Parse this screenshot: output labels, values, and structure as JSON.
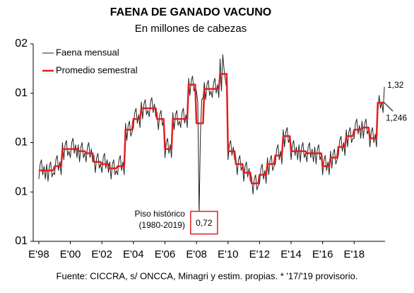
{
  "chart_data": {
    "type": "line",
    "title": "FAENA DE GANADO VACUNO",
    "subtitle": "En millones de cabezas",
    "source": "Fuente: CICCRA, s/ ONCCA, Minagri y estim. propias. * '17/'19 provisorio.",
    "annotations": [
      "Piso histórico",
      "(1980-2019)"
    ],
    "categories": [
      "E'98",
      null,
      null,
      null,
      null,
      null,
      null,
      null,
      null,
      null,
      null,
      null,
      null,
      null,
      null,
      null,
      null,
      null,
      null,
      null,
      null,
      null,
      null,
      null,
      "E'00",
      null,
      null,
      null,
      null,
      null,
      null,
      null,
      null,
      null,
      null,
      null,
      null,
      null,
      null,
      null,
      null,
      null,
      null,
      null,
      null,
      null,
      null,
      null,
      "E'02",
      null,
      null,
      null,
      null,
      null,
      null,
      null,
      null,
      null,
      null,
      null,
      null,
      null,
      null,
      null,
      null,
      null,
      null,
      null,
      null,
      null,
      null,
      null,
      "E'04",
      null,
      null,
      null,
      null,
      null,
      null,
      null,
      null,
      null,
      null,
      null,
      null,
      null,
      null,
      null,
      null,
      null,
      null,
      null,
      null,
      null,
      null,
      null,
      "E'06",
      null,
      null,
      null,
      null,
      null,
      null,
      null,
      null,
      null,
      null,
      null,
      null,
      null,
      null,
      null,
      null,
      null,
      null,
      null,
      null,
      null,
      null,
      null,
      "E'08",
      null,
      null,
      null,
      null,
      null,
      null,
      null,
      null,
      null,
      null,
      null,
      null,
      null,
      null,
      null,
      null,
      null,
      null,
      null,
      null,
      null,
      null,
      null,
      "E'10",
      null,
      null,
      null,
      null,
      null,
      null,
      null,
      null,
      null,
      null,
      null,
      null,
      null,
      null,
      null,
      null,
      null,
      null,
      null,
      null,
      null,
      null,
      null,
      "E'12",
      null,
      null,
      null,
      null,
      null,
      null,
      null,
      null,
      null,
      null,
      null,
      null,
      null,
      null,
      null,
      null,
      null,
      null,
      null,
      null,
      null,
      null,
      null,
      "E'14",
      null,
      null,
      null,
      null,
      null,
      null,
      null,
      null,
      null,
      null,
      null,
      null,
      null,
      null,
      null,
      null,
      null,
      null,
      null,
      null,
      null,
      null,
      null,
      "E'16",
      null,
      null,
      null,
      null,
      null,
      null,
      null,
      null,
      null,
      null,
      null,
      null,
      null,
      null,
      null,
      null,
      null,
      null,
      null,
      null,
      null,
      null,
      null,
      "E'18",
      null,
      null,
      null,
      null,
      null,
      null,
      null,
      null,
      null,
      null,
      null,
      null,
      null,
      null,
      null,
      null,
      null,
      null,
      null,
      null,
      null,
      null,
      null
    ],
    "series": [
      {
        "name": "Faena mensual",
        "color": "#222222",
        "width": 1,
        "point_labels": [
          {
            "index": 122,
            "label": "0,72",
            "boxed": true
          },
          {
            "index": 263,
            "label": "1,32"
          }
        ],
        "values": [
          0.89,
          0.96,
          0.98,
          0.91,
          0.95,
          0.89,
          0.96,
          0.88,
          0.95,
          0.97,
          0.9,
          0.92,
          0.91,
          0.98,
          1.0,
          0.93,
          0.97,
          0.91,
          1.06,
          0.98,
          1.05,
          1.07,
          1.0,
          1.02,
          0.99,
          1.06,
          1.08,
          1.01,
          1.05,
          0.99,
          1.05,
          0.97,
          1.04,
          1.06,
          0.99,
          1.01,
          0.97,
          1.04,
          1.06,
          0.99,
          1.03,
          0.97,
          1.0,
          0.92,
          0.99,
          1.01,
          0.94,
          0.96,
          0.92,
          0.99,
          1.01,
          0.94,
          0.98,
          0.92,
          0.97,
          0.89,
          0.96,
          0.98,
          0.91,
          0.93,
          0.91,
          0.98,
          1.0,
          0.93,
          0.97,
          0.91,
          1.15,
          1.07,
          1.14,
          1.16,
          1.09,
          1.11,
          1.13,
          1.2,
          1.22,
          1.15,
          1.19,
          1.13,
          1.25,
          1.17,
          1.24,
          1.26,
          1.19,
          1.21,
          1.18,
          1.25,
          1.27,
          1.2,
          1.24,
          1.18,
          1.2,
          1.12,
          1.19,
          1.21,
          1.14,
          1.16,
          0.99,
          1.06,
          1.08,
          1.01,
          1.05,
          0.99,
          1.2,
          1.12,
          1.19,
          1.21,
          1.14,
          1.16,
          1.13,
          1.2,
          1.22,
          1.15,
          1.19,
          1.13,
          1.36,
          1.28,
          1.35,
          1.37,
          1.3,
          1.32,
          1.3,
          1.25,
          0.72,
          1.1,
          1.26,
          1.27,
          1.34,
          1.26,
          1.33,
          1.35,
          1.28,
          1.3,
          1.27,
          1.34,
          1.36,
          1.29,
          1.33,
          1.27,
          1.45,
          1.3,
          1.47,
          1.4,
          1.35,
          1.31,
          0.98,
          1.05,
          1.07,
          1.0,
          1.04,
          0.98,
          0.99,
          0.91,
          0.98,
          1.0,
          0.93,
          0.95,
          0.88,
          0.95,
          0.97,
          0.9,
          0.94,
          0.88,
          0.9,
          0.82,
          0.89,
          0.91,
          0.84,
          0.86,
          0.87,
          0.94,
          0.96,
          0.89,
          0.93,
          0.87,
          0.99,
          0.91,
          0.98,
          1.0,
          0.93,
          0.95,
          0.96,
          1.03,
          1.05,
          0.98,
          1.02,
          0.96,
          1.12,
          1.04,
          1.11,
          1.13,
          1.06,
          1.08,
          0.98,
          1.05,
          1.07,
          1.0,
          1.04,
          0.98,
          1.05,
          0.97,
          1.04,
          1.06,
          0.99,
          1.01,
          0.97,
          1.04,
          1.06,
          0.99,
          1.03,
          0.97,
          1.04,
          0.96,
          1.03,
          1.05,
          0.98,
          1.0,
          0.91,
          0.98,
          1.0,
          0.93,
          0.97,
          0.91,
          1.02,
          0.94,
          1.01,
          1.03,
          0.96,
          0.98,
          1.0,
          1.07,
          1.09,
          1.02,
          1.06,
          1.0,
          1.12,
          1.04,
          1.11,
          1.13,
          1.06,
          1.08,
          1.08,
          1.15,
          1.17,
          1.1,
          1.14,
          1.08,
          1.16,
          1.08,
          1.15,
          1.17,
          1.1,
          1.12,
          1.04,
          1.11,
          1.13,
          1.06,
          1.1,
          1.04,
          1.2,
          1.28,
          1.22,
          1.25,
          1.2,
          1.32
        ]
      },
      {
        "name": "Promedio semestral",
        "color": "#e02020",
        "width": 2.5,
        "point_labels": [
          {
            "index": 263,
            "label": "1,246"
          }
        ],
        "values": [
          0.93,
          0.93,
          0.93,
          0.93,
          0.93,
          0.93,
          0.93,
          0.93,
          0.93,
          0.93,
          0.93,
          0.93,
          0.95,
          0.95,
          0.95,
          0.95,
          0.95,
          0.95,
          1.03,
          1.03,
          1.03,
          1.03,
          1.03,
          1.03,
          1.03,
          1.03,
          1.03,
          1.03,
          1.03,
          1.03,
          1.02,
          1.02,
          1.02,
          1.02,
          1.02,
          1.02,
          1.01,
          1.01,
          1.01,
          1.01,
          1.01,
          1.01,
          0.97,
          0.97,
          0.97,
          0.97,
          0.97,
          0.97,
          0.96,
          0.96,
          0.96,
          0.96,
          0.96,
          0.96,
          0.94,
          0.94,
          0.94,
          0.94,
          0.94,
          0.94,
          0.95,
          0.95,
          0.95,
          0.95,
          0.95,
          0.95,
          1.12,
          1.12,
          1.12,
          1.12,
          1.12,
          1.12,
          1.17,
          1.17,
          1.17,
          1.17,
          1.17,
          1.17,
          1.22,
          1.22,
          1.22,
          1.22,
          1.22,
          1.22,
          1.22,
          1.22,
          1.22,
          1.22,
          1.22,
          1.22,
          1.17,
          1.17,
          1.17,
          1.17,
          1.17,
          1.17,
          1.03,
          1.03,
          1.03,
          1.03,
          1.03,
          1.03,
          1.17,
          1.17,
          1.17,
          1.17,
          1.17,
          1.17,
          1.17,
          1.17,
          1.17,
          1.17,
          1.17,
          1.17,
          1.33,
          1.33,
          1.33,
          1.33,
          1.33,
          1.33,
          1.15,
          1.15,
          1.15,
          1.15,
          1.15,
          1.15,
          1.31,
          1.31,
          1.31,
          1.31,
          1.31,
          1.31,
          1.31,
          1.31,
          1.31,
          1.31,
          1.31,
          1.31,
          1.38,
          1.38,
          1.38,
          1.38,
          1.38,
          1.38,
          1.02,
          1.02,
          1.02,
          1.02,
          1.02,
          1.02,
          0.96,
          0.96,
          0.96,
          0.96,
          0.96,
          0.96,
          0.92,
          0.92,
          0.92,
          0.92,
          0.92,
          0.92,
          0.87,
          0.87,
          0.87,
          0.87,
          0.87,
          0.87,
          0.91,
          0.91,
          0.91,
          0.91,
          0.91,
          0.91,
          0.96,
          0.96,
          0.96,
          0.96,
          0.96,
          0.96,
          1.0,
          1.0,
          1.0,
          1.0,
          1.0,
          1.0,
          1.09,
          1.09,
          1.09,
          1.09,
          1.09,
          1.09,
          1.02,
          1.02,
          1.02,
          1.02,
          1.02,
          1.02,
          1.02,
          1.02,
          1.02,
          1.02,
          1.02,
          1.02,
          1.01,
          1.01,
          1.01,
          1.01,
          1.01,
          1.01,
          1.01,
          1.01,
          1.01,
          1.01,
          1.01,
          1.01,
          0.95,
          0.95,
          0.95,
          0.95,
          0.95,
          0.95,
          0.99,
          0.99,
          0.99,
          0.99,
          0.99,
          0.99,
          1.04,
          1.04,
          1.04,
          1.04,
          1.04,
          1.04,
          1.09,
          1.09,
          1.09,
          1.09,
          1.09,
          1.09,
          1.12,
          1.12,
          1.12,
          1.12,
          1.12,
          1.12,
          1.13,
          1.13,
          1.13,
          1.13,
          1.13,
          1.13,
          1.08,
          1.08,
          1.08,
          1.08,
          1.08,
          1.08,
          1.246,
          1.246,
          1.246,
          1.246,
          1.246,
          1.246
        ]
      }
    ],
    "ylim": [
      0.6,
      1.52
    ],
    "yticks": [
      {
        "value": 0.6,
        "label": "01"
      },
      {
        "value": 0.83,
        "label": "01"
      },
      {
        "value": 1.06,
        "label": "01"
      },
      {
        "value": 1.29,
        "label": "01"
      },
      {
        "value": 1.52,
        "label": "02"
      }
    ],
    "grid": false,
    "legend": "upper left"
  }
}
